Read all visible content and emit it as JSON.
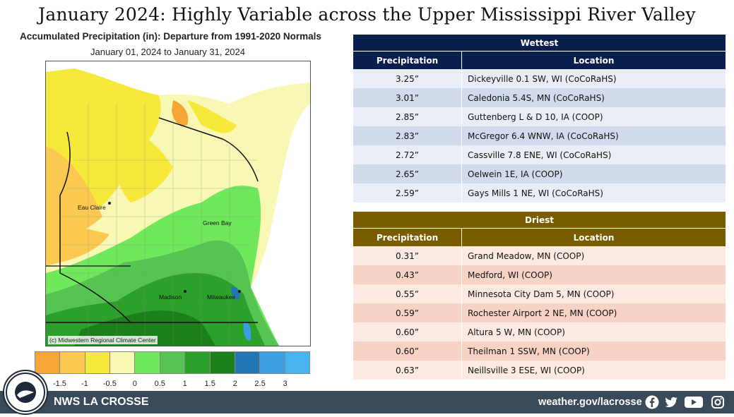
{
  "title": "January 2024:  Highly Variable across the Upper Mississippi River Valley",
  "map": {
    "title": "Accumulated Precipitation (in): Departure from 1991-2020 Normals",
    "subtitle": "January 01, 2024 to January 31, 2024",
    "credit": "(c) Midwestern Regional Climate Center",
    "cities": [
      "Eau Claire",
      "Green Bay",
      "Madison",
      "Milwaukee"
    ],
    "legend": {
      "colors": [
        "#f7a536",
        "#fbc94f",
        "#f7e93b",
        "#f8f7b3",
        "#6fe85b",
        "#56c450",
        "#2ba02b",
        "#1b7f1b",
        "#2477b6",
        "#3b9ee0",
        "#48b4ef"
      ],
      "ticks": [
        "-1.5",
        "-1",
        "-0.5",
        "0",
        "0.5",
        "1",
        "1.5",
        "2",
        "2.5",
        "3"
      ]
    }
  },
  "wettest": {
    "header": "Wettest",
    "col_precip": "Precipitation",
    "col_location": "Location",
    "rows": [
      {
        "precip": "3.25”",
        "location": "Dickeyville 0.1 SW, WI (CoCoRaHS)"
      },
      {
        "precip": "3.01”",
        "location": "Caledonia 5.4S, MN (CoCoRaHS)"
      },
      {
        "precip": "2.85”",
        "location": "Guttenberg L & D 10,  IA (COOP)"
      },
      {
        "precip": "2.83”",
        "location": "McGregor 6.4 WNW, IA (CoCoRaHS)"
      },
      {
        "precip": "2.72”",
        "location": "Cassville 7.8 ENE, WI (CoCoRaHS)"
      },
      {
        "precip": "2.65”",
        "location": "Oelwein 1E, IA (COOP)"
      },
      {
        "precip": "2.59”",
        "location": "Gays Mills 1 NE, WI (CoCoRaHS)"
      }
    ]
  },
  "driest": {
    "header": "Driest",
    "col_precip": "Precipitation",
    "col_location": "Location",
    "rows": [
      {
        "precip": "0.31”",
        "location": "Grand Meadow, MN (COOP)"
      },
      {
        "precip": "0.43”",
        "location": "Medford, WI (COOP)"
      },
      {
        "precip": "0.55”",
        "location": "Minnesota City Dam 5, MN (COOP)"
      },
      {
        "precip": "0.59”",
        "location": "Rochester Airport 2 NE, MN (COOP)"
      },
      {
        "precip": "0.60”",
        "location": "Altura 5 W, MN (COOP)"
      },
      {
        "precip": "0.60”",
        "location": "Theilman 1 SSW, MN (COOP)"
      },
      {
        "precip": "0.63”",
        "location": "Neillsville 3 ESE, WI (COOP)"
      }
    ]
  },
  "footer": {
    "office": "NWS LA CROSSE",
    "url": "weather.gov/lacrosse",
    "icons": [
      "facebook-icon",
      "twitter-icon",
      "youtube-icon",
      "instagram-icon"
    ]
  }
}
